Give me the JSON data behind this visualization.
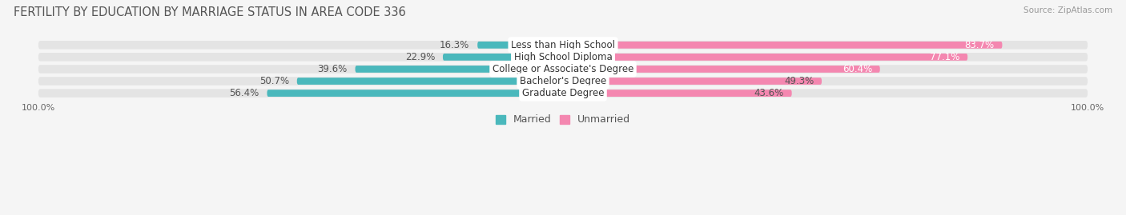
{
  "title": "FERTILITY BY EDUCATION BY MARRIAGE STATUS IN AREA CODE 336",
  "source": "Source: ZipAtlas.com",
  "categories": [
    "Less than High School",
    "High School Diploma",
    "College or Associate's Degree",
    "Bachelor's Degree",
    "Graduate Degree"
  ],
  "married": [
    16.3,
    22.9,
    39.6,
    50.7,
    56.4
  ],
  "unmarried": [
    83.7,
    77.1,
    60.4,
    49.3,
    43.6
  ],
  "married_color": "#4ab8bc",
  "unmarried_color": "#f487b0",
  "bar_bg_color": "#e4e4e4",
  "background_color": "#f5f5f5",
  "title_fontsize": 10.5,
  "label_fontsize": 8.5,
  "pct_fontsize": 8.5,
  "legend_fontsize": 9,
  "axis_label_fontsize": 8
}
